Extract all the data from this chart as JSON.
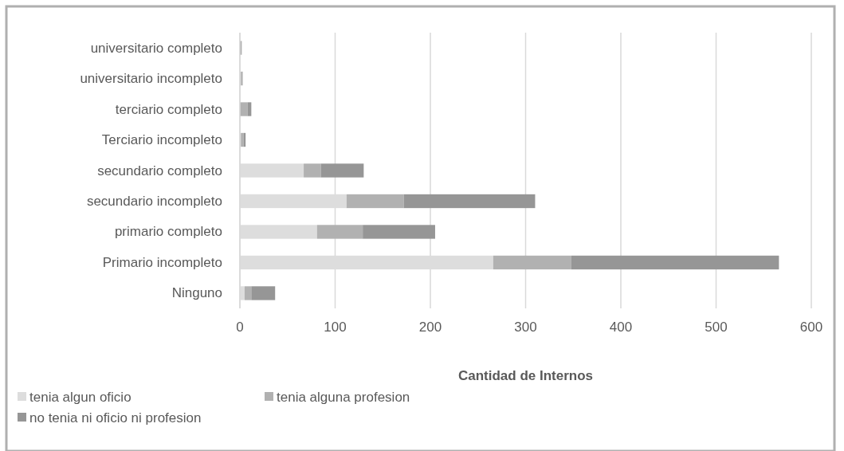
{
  "chart_data": {
    "type": "bar",
    "orientation": "horizontal",
    "stacked": true,
    "categories": [
      "universitario completo",
      "universitario incompleto",
      "terciario completo",
      "Terciario incompleto",
      "secundario completo",
      "secundario incompleto",
      "primario completo",
      "Primario incompleto",
      "Ninguno"
    ],
    "series": [
      {
        "name": "tenia algun oficio",
        "color": "#dddddd",
        "values": [
          0,
          1,
          0,
          1,
          67,
          112,
          81,
          266,
          5
        ]
      },
      {
        "name": "tenia alguna profesion",
        "color": "#b1b1b1",
        "values": [
          2,
          2,
          8,
          3,
          18,
          60,
          48,
          82,
          7
        ]
      },
      {
        "name": "no tenia ni oficio ni profesion",
        "color": "#969696",
        "values": [
          0,
          0,
          4,
          2,
          45,
          138,
          76,
          218,
          25
        ]
      }
    ],
    "xlim": [
      0,
      600
    ],
    "xticks": [
      0,
      100,
      200,
      300,
      400,
      500,
      600
    ],
    "xlabel": "Cantidad de Internos",
    "grid": "x",
    "legend": "bottom"
  }
}
